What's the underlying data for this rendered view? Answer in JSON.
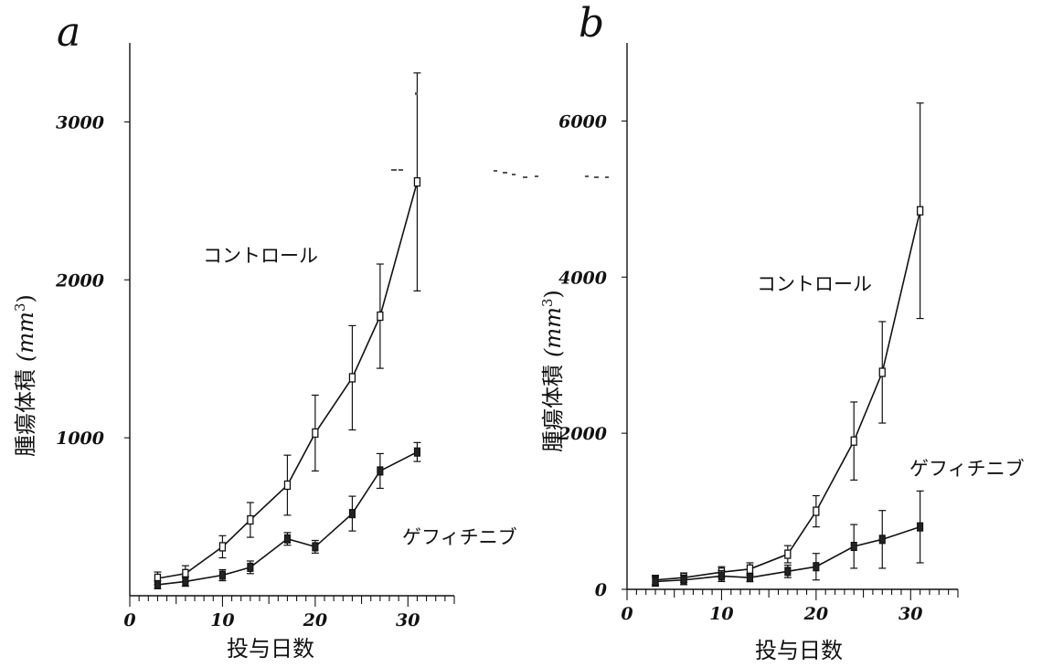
{
  "colors": {
    "ink": "#111111",
    "background": "#ffffff"
  },
  "chart_data": [
    {
      "type": "line",
      "panel": "a",
      "title": "",
      "xlabel": "投与日数",
      "ylabel_main": "腫瘍体積",
      "ylabel_unit": "(mm",
      "ylabel_sup": "3",
      "ylabel_close": ")",
      "xlim": [
        0,
        35
      ],
      "ylim": [
        0,
        3500
      ],
      "x_ticks": [
        0,
        10,
        20,
        30
      ],
      "y_ticks": [
        1000,
        2000,
        3000
      ],
      "x_tick_labels": [
        "0",
        "10",
        "20",
        "30"
      ],
      "y_tick_labels": [
        "1000",
        "2000",
        "3000"
      ],
      "series": [
        {
          "name": "コントロール",
          "marker": "open-square",
          "x": [
            3,
            6,
            10,
            13,
            17,
            20,
            24,
            27,
            31
          ],
          "values": [
            110,
            140,
            310,
            480,
            700,
            1030,
            1380,
            1770,
            2620
          ],
          "error": [
            40,
            50,
            70,
            110,
            190,
            240,
            330,
            330,
            690
          ]
        },
        {
          "name": "ゲフィチニブ",
          "marker": "filled-square",
          "x": [
            3,
            6,
            10,
            13,
            17,
            20,
            24,
            27,
            31
          ],
          "values": [
            70,
            90,
            130,
            180,
            360,
            310,
            520,
            790,
            910
          ],
          "error": [
            25,
            30,
            35,
            40,
            40,
            40,
            110,
            110,
            60
          ]
        }
      ]
    },
    {
      "type": "line",
      "panel": "b",
      "title": "",
      "xlabel": "投与日数",
      "ylabel_main": "腫瘍体積",
      "ylabel_unit": "(mm",
      "ylabel_sup": "3",
      "ylabel_close": ")",
      "xlim": [
        0,
        35
      ],
      "ylim": [
        0,
        7000
      ],
      "x_ticks": [
        0,
        10,
        20,
        30
      ],
      "y_ticks": [
        0,
        2000,
        4000,
        6000
      ],
      "x_tick_labels": [
        "0",
        "10",
        "20",
        "30"
      ],
      "y_tick_labels": [
        "0",
        "2000",
        "4000",
        "6000"
      ],
      "series": [
        {
          "name": "コントロール",
          "marker": "open-square",
          "x": [
            3,
            6,
            10,
            13,
            17,
            20,
            24,
            27,
            31
          ],
          "values": [
            120,
            150,
            220,
            260,
            450,
            1000,
            1900,
            2780,
            4850
          ],
          "error": [
            60,
            60,
            70,
            80,
            110,
            200,
            500,
            650,
            1380
          ]
        },
        {
          "name": "ゲフィチニブ",
          "marker": "filled-square",
          "x": [
            3,
            6,
            10,
            13,
            17,
            20,
            24,
            27,
            31
          ],
          "values": [
            100,
            120,
            170,
            150,
            230,
            290,
            550,
            640,
            800
          ],
          "error": [
            60,
            60,
            70,
            50,
            80,
            170,
            280,
            370,
            460
          ]
        }
      ]
    }
  ]
}
